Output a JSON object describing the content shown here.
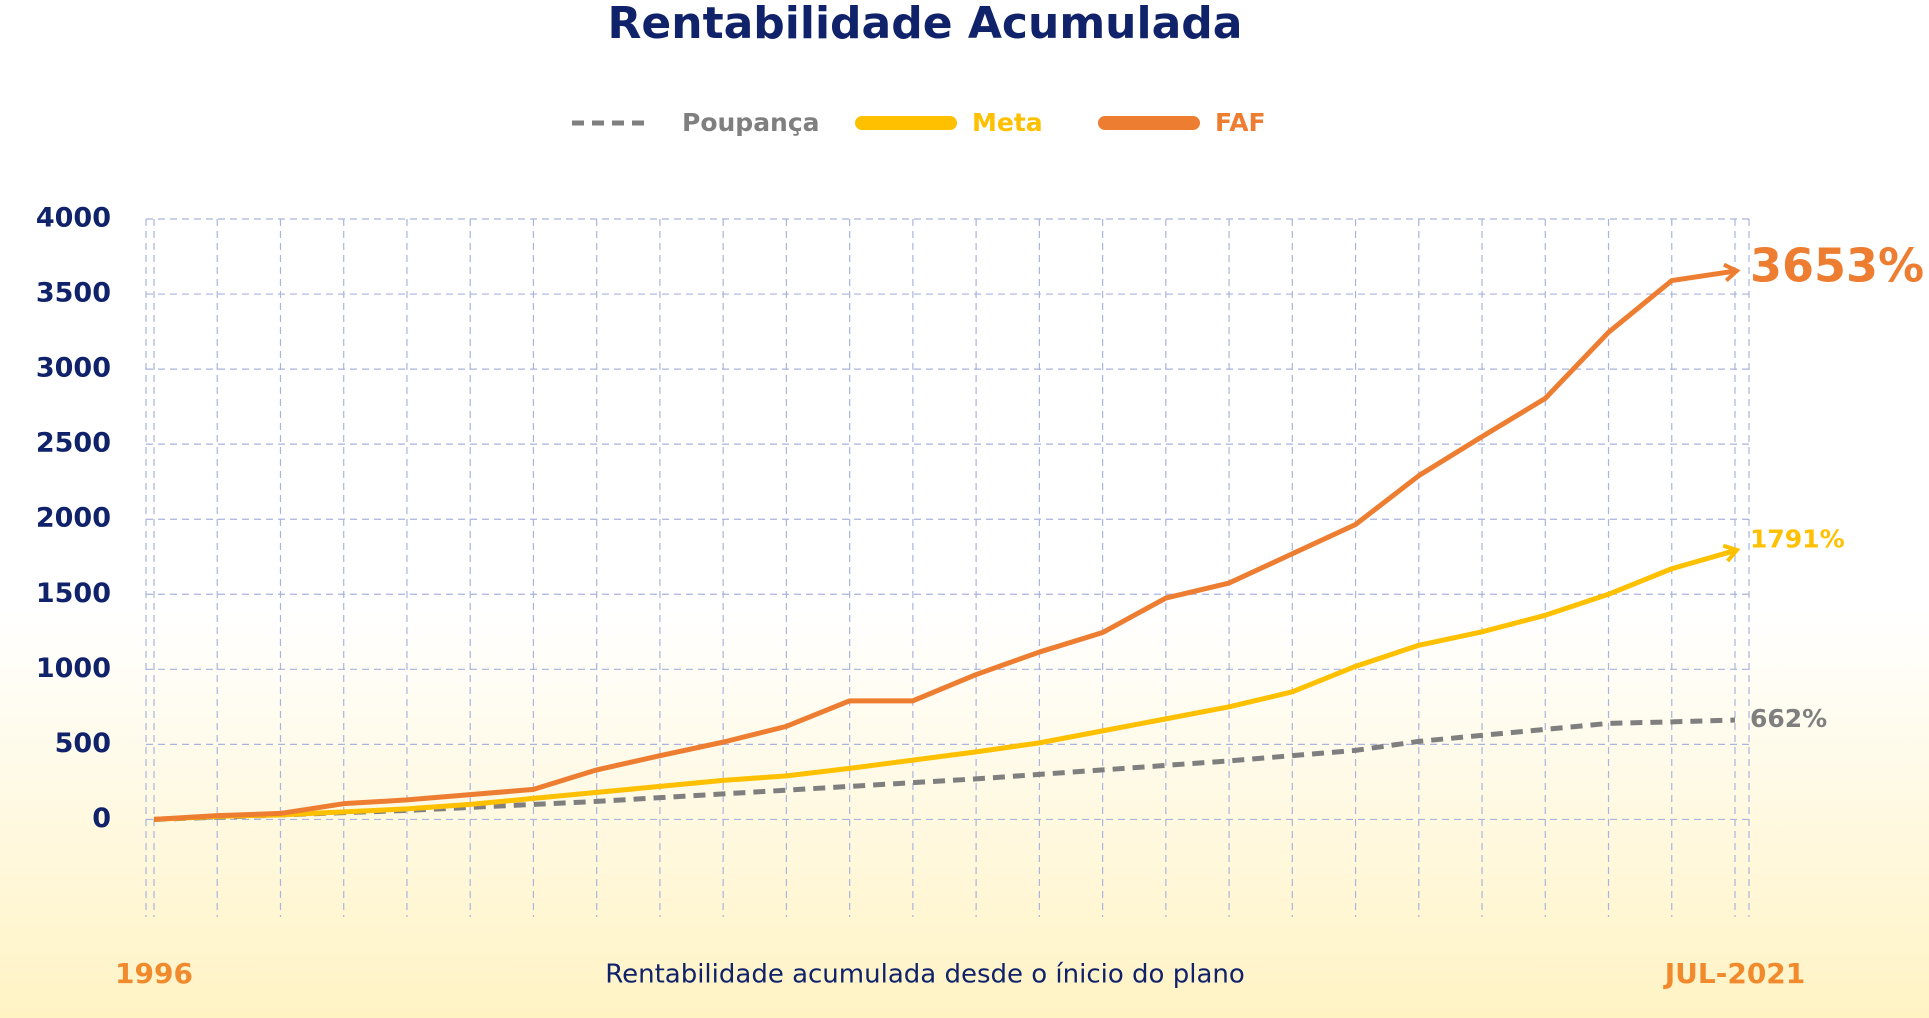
{
  "chart_data": {
    "type": "line",
    "title": "Rentabilidade Acumulada",
    "x_label": "Rentabilidade acumulada desde o ínicio do plano",
    "categories": [
      "1996",
      null,
      null,
      null,
      null,
      null,
      null,
      null,
      null,
      null,
      null,
      null,
      null,
      null,
      null,
      null,
      null,
      null,
      null,
      null,
      null,
      null,
      null,
      null,
      null,
      "JUL-2021"
    ],
    "series": [
      {
        "name": "Poupança",
        "color": "#7f7f7f",
        "dashed": true,
        "values": [
          0,
          15,
          30,
          45,
          60,
          80,
          100,
          120,
          145,
          170,
          195,
          220,
          245,
          270,
          300,
          330,
          360,
          390,
          425,
          460,
          520,
          560,
          600,
          640,
          650,
          662
        ],
        "value_labels": [
          null,
          null,
          null,
          null,
          null,
          null,
          null,
          null,
          null,
          null,
          null,
          null,
          null,
          null,
          null,
          null,
          null,
          null,
          null,
          null,
          null,
          null,
          null,
          null,
          null,
          "662%"
        ]
      },
      {
        "name": "Meta",
        "color": "#ffc000",
        "dashed": false,
        "values": [
          0,
          20,
          30,
          50,
          70,
          100,
          140,
          180,
          220,
          260,
          290,
          340,
          395,
          450,
          510,
          590,
          670,
          750,
          850,
          1020,
          1160,
          1250,
          1360,
          1500,
          1670,
          1791
        ],
        "value_labels": [
          null,
          null,
          null,
          null,
          null,
          null,
          null,
          null,
          null,
          null,
          null,
          null,
          null,
          null,
          null,
          null,
          null,
          null,
          null,
          null,
          null,
          null,
          null,
          null,
          null,
          "1791%"
        ]
      },
      {
        "name": "FAF",
        "color": "#ed7d31",
        "dashed": false,
        "values": [
          0,
          25,
          40,
          105,
          130,
          165,
          200,
          330,
          425,
          515,
          620,
          790,
          790,
          965,
          1115,
          1245,
          1475,
          1575,
          1770,
          1965,
          2290,
          2550,
          2805,
          3245,
          3590,
          3653
        ],
        "value_labels": [
          null,
          null,
          null,
          null,
          null,
          null,
          null,
          null,
          null,
          null,
          null,
          null,
          null,
          null,
          null,
          null,
          null,
          null,
          null,
          null,
          null,
          null,
          null,
          null,
          null,
          "3653%"
        ]
      }
    ],
    "ylim": [
      -650,
      4000
    ],
    "yticks": [
      0,
      500,
      1000,
      1500,
      2000,
      2500,
      3000,
      3500,
      4000
    ],
    "grid": true
  }
}
